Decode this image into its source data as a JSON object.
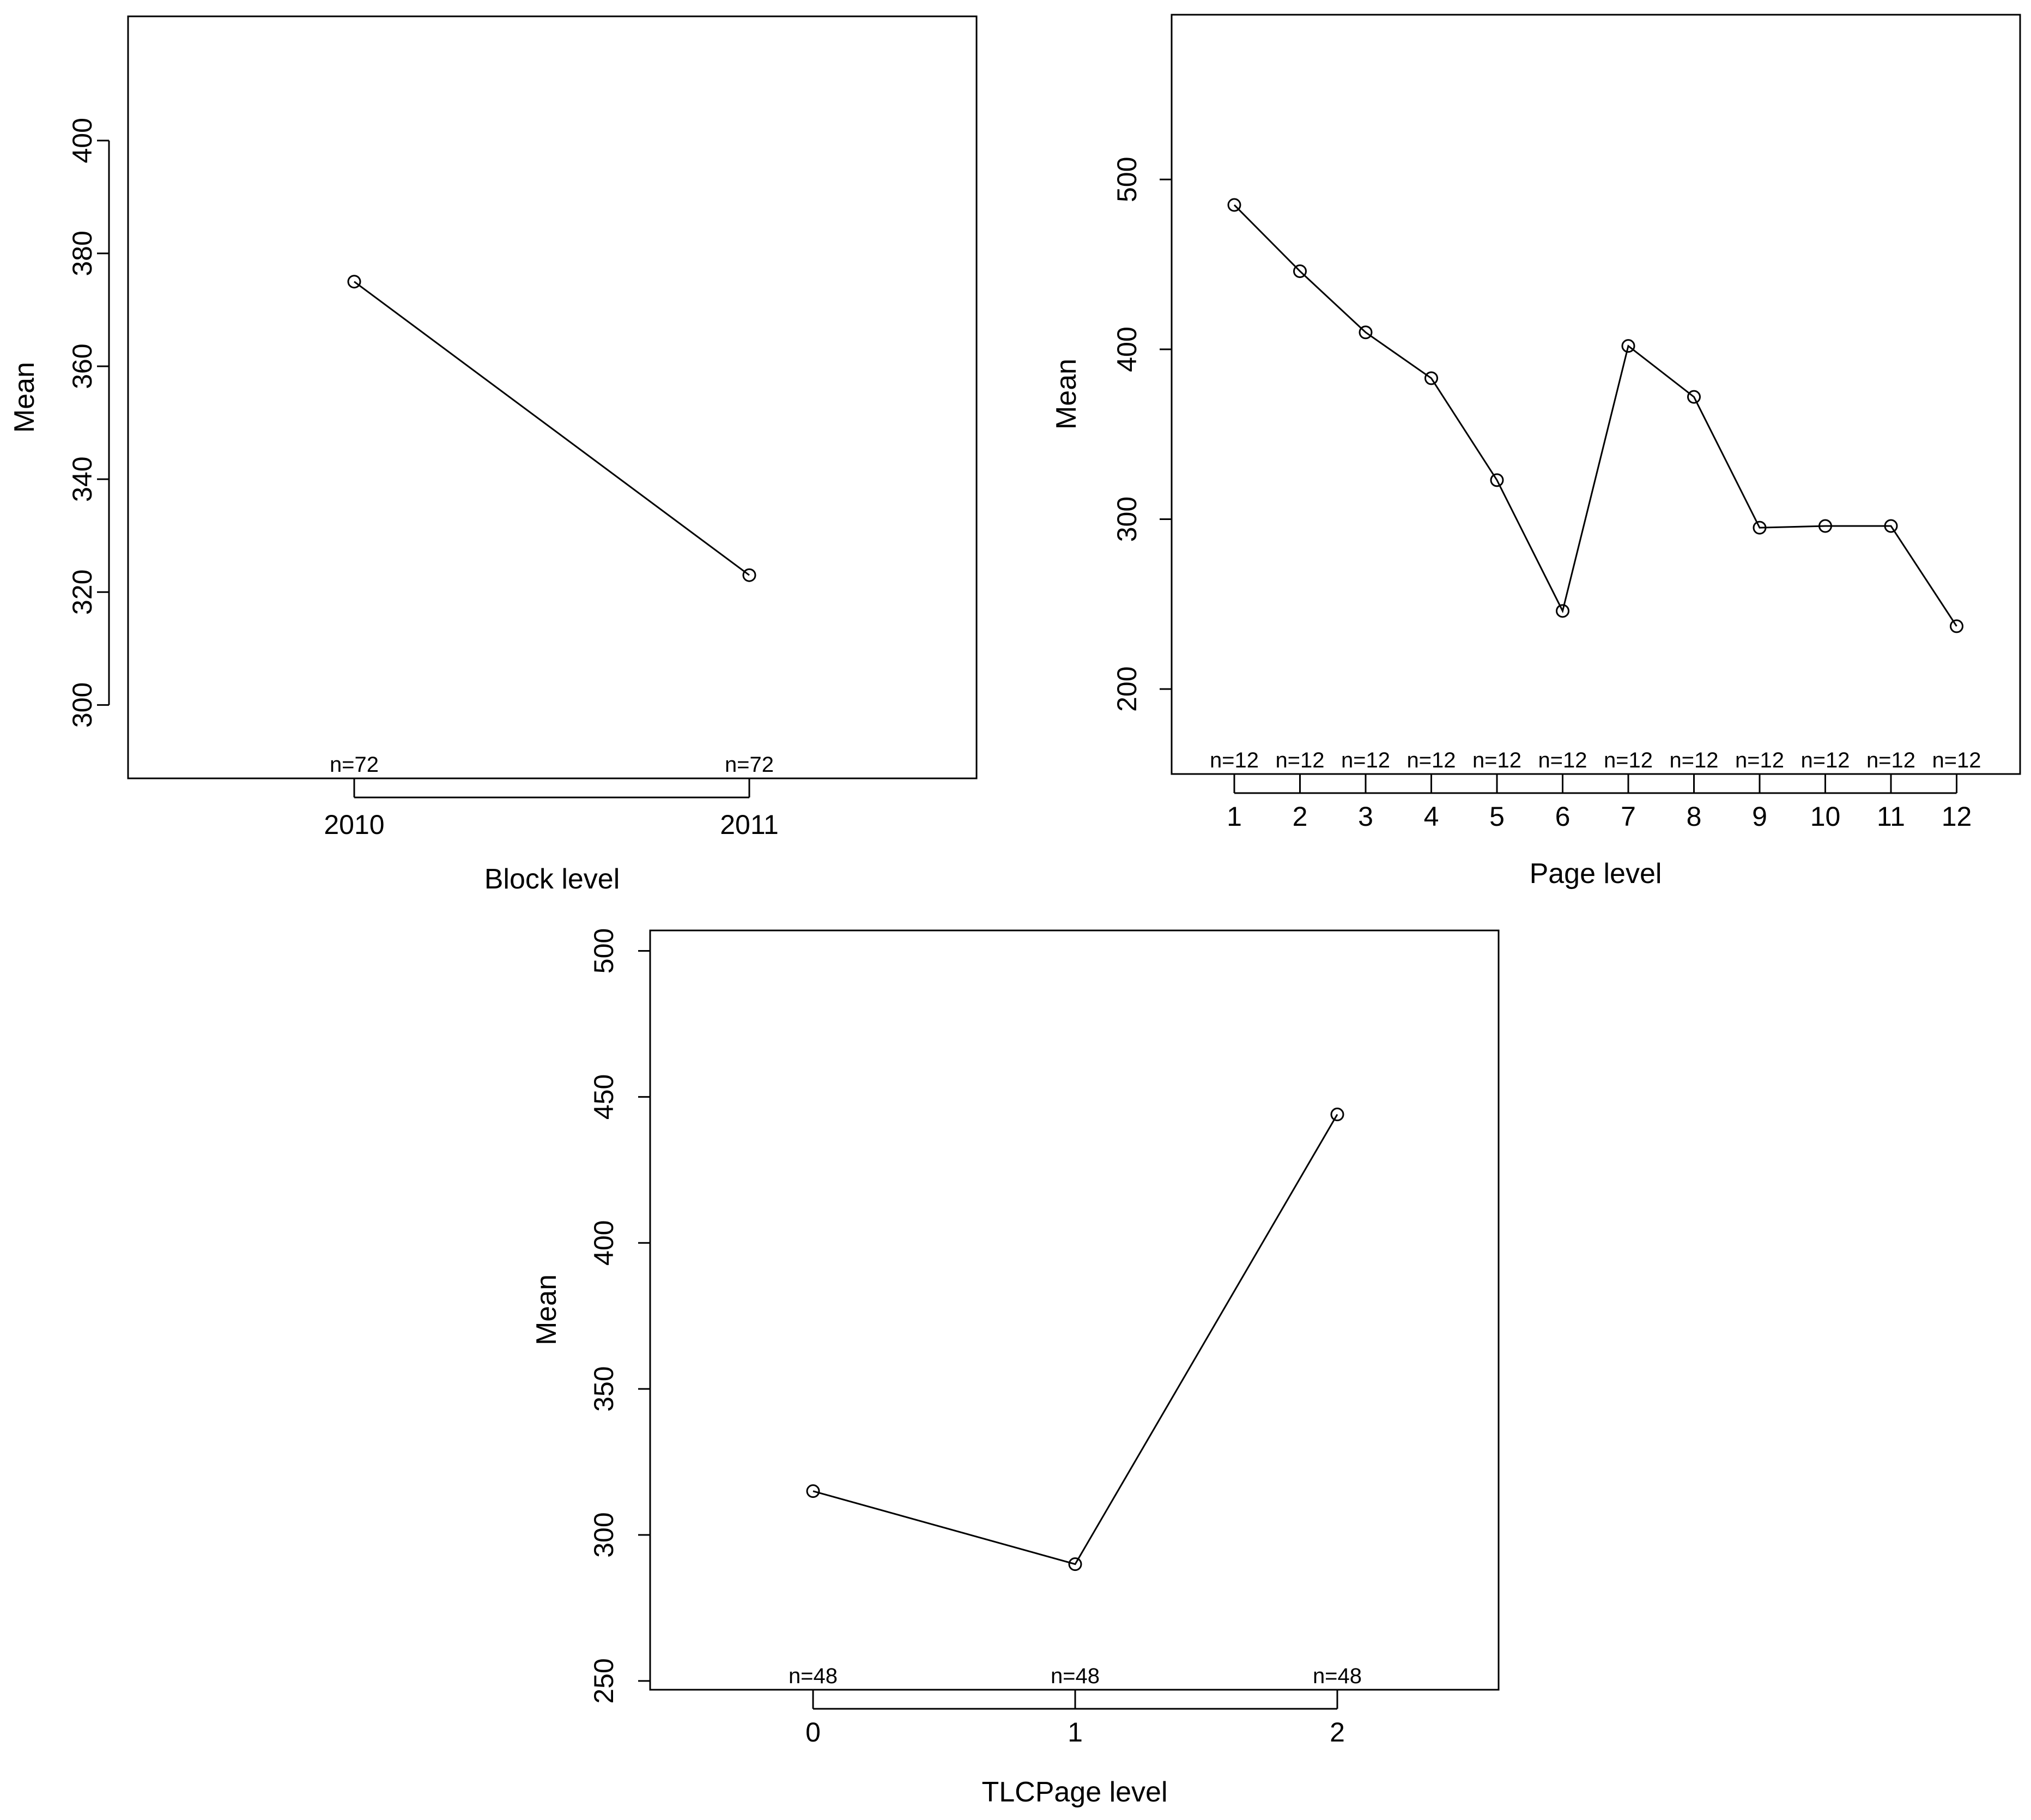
{
  "chart_data": [
    {
      "type": "line",
      "xlabel": "Block level",
      "ylabel": "Mean",
      "categories": [
        "2010",
        "2011"
      ],
      "series": [
        {
          "values": [
            375,
            323
          ]
        }
      ],
      "n_labels": [
        "n=72",
        "n=72"
      ],
      "ylim": [
        287,
        422
      ],
      "yticks": [
        300,
        320,
        340,
        360,
        380,
        400
      ],
      "grid": false
    },
    {
      "type": "line",
      "xlabel": "Page level",
      "ylabel": "Mean",
      "categories": [
        "1",
        "2",
        "3",
        "4",
        "5",
        "6",
        "7",
        "8",
        "9",
        "10",
        "11",
        "12"
      ],
      "series": [
        {
          "values": [
            485,
            446,
            410,
            383,
            323,
            246,
            402,
            372,
            295,
            296,
            296,
            237
          ]
        }
      ],
      "n_labels": [
        "n=12",
        "n=12",
        "n=12",
        "n=12",
        "n=12",
        "n=12",
        "n=12",
        "n=12",
        "n=12",
        "n=12",
        "n=12",
        "n=12"
      ],
      "ylim": [
        150,
        597
      ],
      "yticks": [
        200,
        300,
        400,
        500
      ],
      "grid": false
    },
    {
      "type": "line",
      "xlabel": "TLCPage level",
      "ylabel": "Mean",
      "categories": [
        "0",
        "1",
        "2"
      ],
      "series": [
        {
          "values": [
            315,
            290,
            444
          ]
        }
      ],
      "n_labels": [
        "n=48",
        "n=48",
        "n=48"
      ],
      "ylim": [
        247,
        507
      ],
      "yticks": [
        250,
        300,
        350,
        400,
        450,
        500
      ],
      "grid": false
    }
  ]
}
